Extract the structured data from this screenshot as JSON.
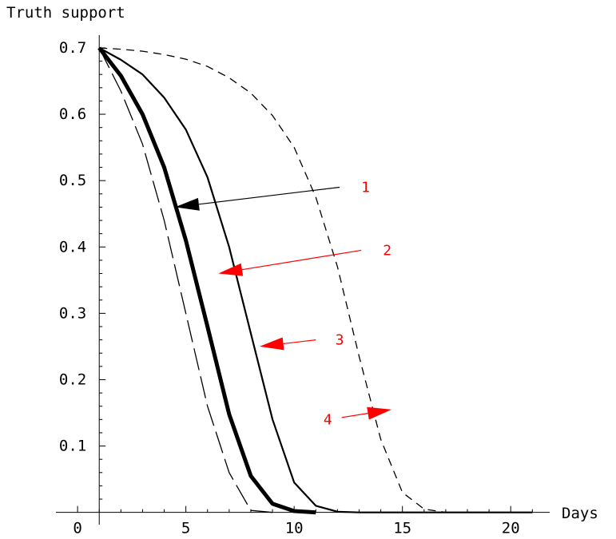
{
  "chart_data": {
    "type": "line",
    "title": "",
    "xlabel": "Days",
    "ylabel": "Truth support",
    "xlim": [
      -1,
      21.8
    ],
    "ylim": [
      -0.004,
      0.712
    ],
    "x_ticks": [
      0,
      5,
      10,
      15,
      20
    ],
    "x_tick_labels": [
      "0",
      "5",
      "10",
      "15",
      "20"
    ],
    "y_ticks": [
      0.1,
      0.2,
      0.3,
      0.4,
      0.5,
      0.6,
      0.7
    ],
    "y_tick_labels": [
      "0.1",
      "0.2",
      "0.3",
      "0.4",
      "0.5",
      "0.6",
      "0.7"
    ],
    "grid": false,
    "legend": "none",
    "series": [
      {
        "style": "long-dashed thin",
        "color": "#000000",
        "x": [
          1,
          2,
          3,
          4,
          5,
          6,
          7,
          8,
          9
        ],
        "y": [
          0.7,
          0.635,
          0.555,
          0.44,
          0.3,
          0.16,
          0.06,
          0.003,
          0.0
        ]
      },
      {
        "style": "solid thick",
        "color": "#000000",
        "x": [
          1,
          2,
          3,
          4,
          5,
          6,
          7,
          8,
          9,
          10,
          11
        ],
        "y": [
          0.7,
          0.658,
          0.6,
          0.52,
          0.41,
          0.28,
          0.148,
          0.055,
          0.013,
          0.002,
          0.0
        ]
      },
      {
        "style": "solid medium",
        "color": "#000000",
        "x": [
          1,
          2,
          3,
          4,
          5,
          6,
          7,
          8,
          9,
          10,
          11,
          12,
          13,
          21
        ],
        "y": [
          0.7,
          0.682,
          0.66,
          0.625,
          0.577,
          0.505,
          0.4,
          0.27,
          0.14,
          0.045,
          0.01,
          0.001,
          0.0,
          0.0
        ]
      },
      {
        "style": "short-dashed thin",
        "color": "#000000",
        "x": [
          1,
          2,
          3,
          4,
          5,
          6,
          7,
          8,
          9,
          10,
          11,
          12,
          13,
          14,
          15,
          16,
          17,
          18,
          21
        ],
        "y": [
          0.7,
          0.698,
          0.695,
          0.69,
          0.683,
          0.672,
          0.655,
          0.632,
          0.598,
          0.55,
          0.475,
          0.37,
          0.235,
          0.11,
          0.03,
          0.005,
          0.0,
          0.0,
          0.0
        ]
      }
    ],
    "annotations": [
      {
        "label": "1",
        "color": "#ff0000",
        "arrow_color": "#000000",
        "text_x": 13.3,
        "text_y": 0.49,
        "from_x": 12.1,
        "from_y": 0.49,
        "to_x": 4.5,
        "to_y": 0.46
      },
      {
        "label": "2",
        "color": "#ff0000",
        "arrow_color": "#ff0000",
        "text_x": 14.3,
        "text_y": 0.395,
        "from_x": 13.1,
        "from_y": 0.395,
        "to_x": 6.5,
        "to_y": 0.36
      },
      {
        "label": "3",
        "color": "#ff0000",
        "arrow_color": "#ff0000",
        "text_x": 12.1,
        "text_y": 0.26,
        "from_x": 11.0,
        "from_y": 0.26,
        "to_x": 8.4,
        "to_y": 0.25
      },
      {
        "label": "4",
        "color": "#ff0000",
        "arrow_color": "#ff0000",
        "text_x": 11.55,
        "text_y": 0.14,
        "from_x": 12.2,
        "from_y": 0.143,
        "to_x": 14.5,
        "to_y": 0.155
      }
    ]
  }
}
